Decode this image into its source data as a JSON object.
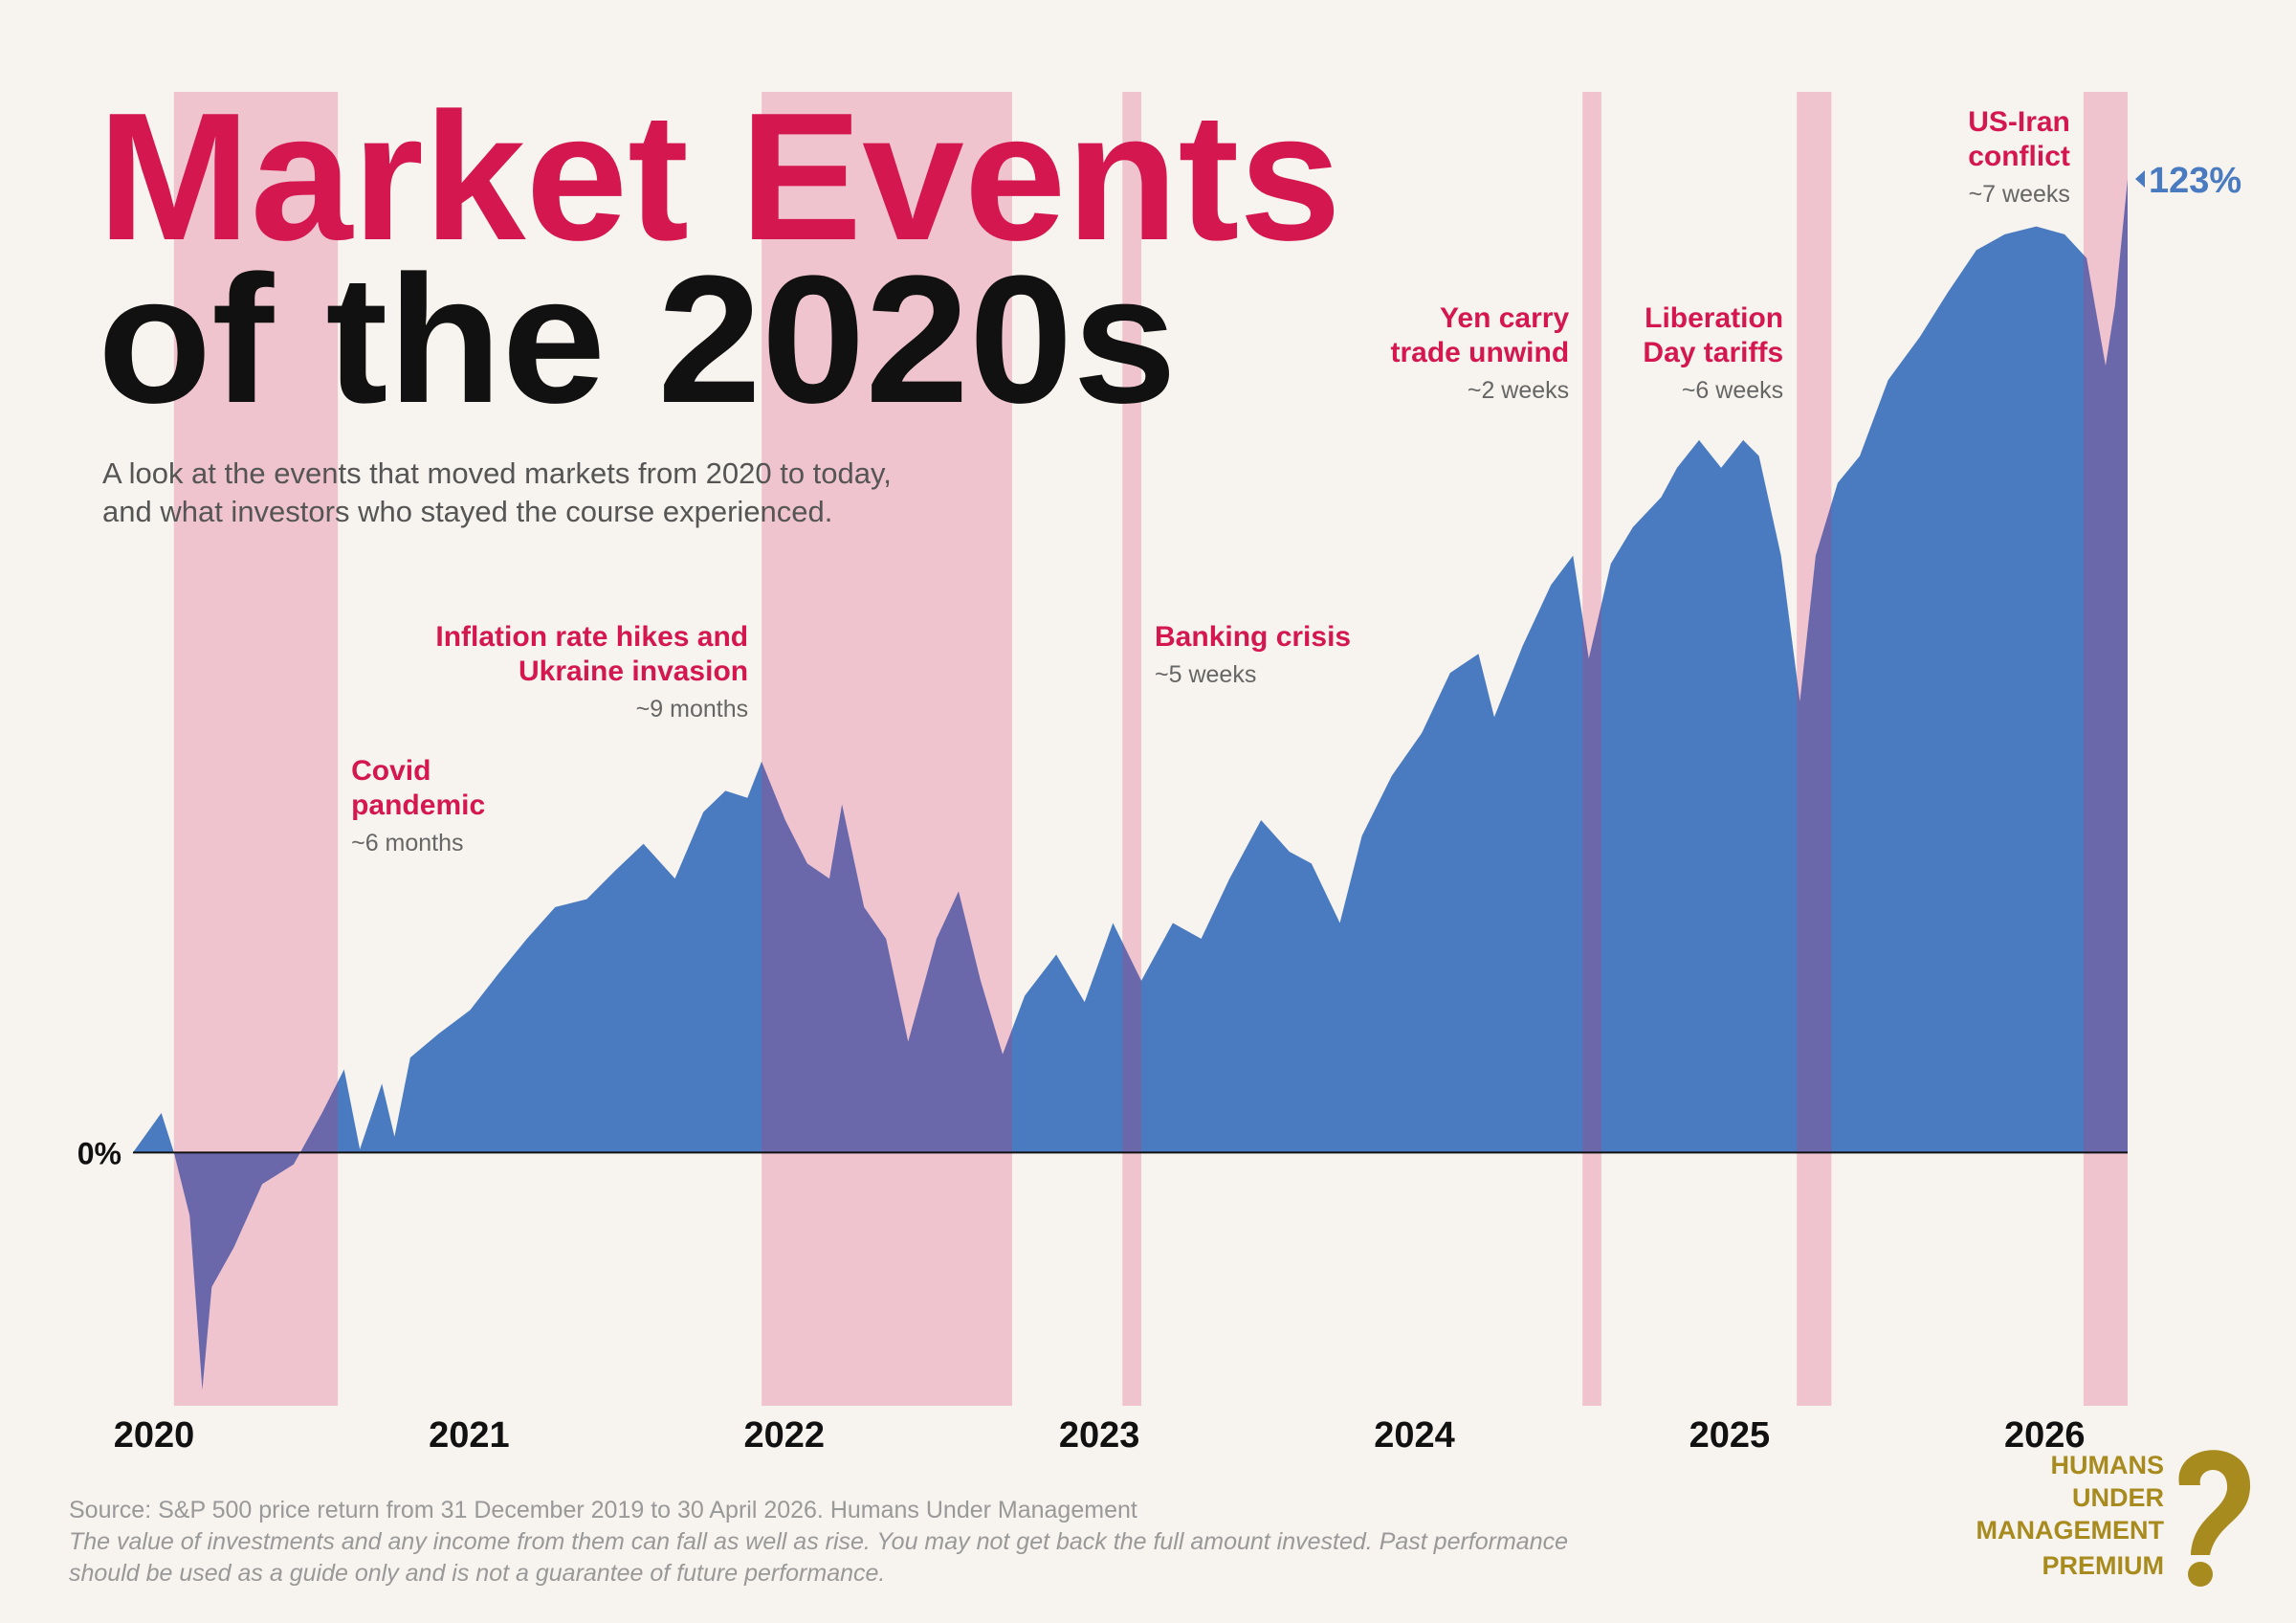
{
  "title": [
    "Market Events",
    "of the 2020s"
  ],
  "subtitle": [
    "A look at the events that moved markets from 2020 to today,",
    "and what investors who stayed the course experienced."
  ],
  "chart_data": {
    "type": "area",
    "xlim": [
      2020,
      2026.33
    ],
    "xticks": [
      2020,
      2021,
      2022,
      2023,
      2024,
      2025,
      2026
    ],
    "ylim": [
      -32,
      134
    ],
    "yticks": [
      {
        "value": 0,
        "label": "0%"
      }
    ],
    "series": [
      {
        "name": "S&P 500",
        "color": "#4a7bc0",
        "x": [
          2020,
          2020.09,
          2020.13,
          2020.18,
          2020.22,
          2020.25,
          2020.32,
          2020.41,
          2020.51,
          2020.6,
          2020.67,
          2020.72,
          2020.79,
          2020.83,
          2020.88,
          2020.97,
          2021.07,
          2021.16,
          2021.25,
          2021.34,
          2021.44,
          2021.53,
          2021.62,
          2021.72,
          2021.81,
          2021.88,
          2021.95,
          2021.995,
          2022.07,
          2022.14,
          2022.21,
          2022.25,
          2022.32,
          2022.39,
          2022.46,
          2022.55,
          2022.62,
          2022.69,
          2022.76,
          2022.83,
          2022.93,
          2023.02,
          2023.11,
          2023.2,
          2023.3,
          2023.39,
          2023.48,
          2023.58,
          2023.67,
          2023.74,
          2023.83,
          2023.9,
          2023.995,
          2024.09,
          2024.18,
          2024.27,
          2024.32,
          2024.41,
          2024.5,
          2024.57,
          2024.62,
          2024.69,
          2024.76,
          2024.85,
          2024.9,
          2024.97,
          2025.04,
          2025.11,
          2025.16,
          2025.23,
          2025.29,
          2025.34,
          2025.41,
          2025.48,
          2025.57,
          2025.67,
          2025.76,
          2025.85,
          2025.94,
          2026.04,
          2026.13,
          2026.2,
          2026.26,
          2026.29,
          2026.33
        ],
        "values": [
          0,
          5,
          0,
          -8,
          -30,
          -17,
          -12,
          -4,
          -1.5,
          5,
          10.5,
          0.4,
          8.7,
          2,
          12,
          15,
          18,
          22.6,
          27,
          31,
          32,
          35.6,
          39,
          34.6,
          43,
          45.7,
          44.8,
          49.4,
          42,
          36.5,
          34.6,
          44,
          31,
          27,
          14,
          27,
          33,
          21.7,
          12.4,
          19.8,
          25,
          19,
          29,
          21.7,
          29,
          27,
          34.6,
          42,
          38,
          36.5,
          29,
          40,
          47.6,
          53,
          60.6,
          63,
          55,
          64,
          71.7,
          75.4,
          62.4,
          74.4,
          79,
          82.8,
          86.5,
          90,
          86.5,
          90,
          88,
          75.4,
          57,
          75.4,
          84.6,
          88,
          97.6,
          103,
          108.7,
          114,
          116,
          117,
          116,
          113,
          99.4,
          107,
          123
        ],
        "value_labels": [
          null,
          null,
          null,
          null,
          null,
          null,
          null,
          null,
          null,
          null,
          null,
          null,
          null,
          null,
          null,
          null,
          null,
          null,
          null,
          null,
          null,
          null,
          null,
          null,
          null,
          null,
          null,
          null,
          null,
          null,
          null,
          null,
          null,
          null,
          null,
          null,
          null,
          null,
          null,
          null,
          null,
          null,
          null,
          null,
          null,
          null,
          null,
          null,
          null,
          null,
          null,
          null,
          null,
          null,
          null,
          null,
          null,
          null,
          null,
          null,
          null,
          null,
          null,
          null,
          null,
          null,
          null,
          null,
          null,
          null,
          null,
          null,
          null,
          null,
          null,
          null,
          null,
          null,
          null,
          null,
          null,
          null,
          null,
          null,
          "123%"
        ]
      }
    ],
    "events": [
      {
        "name": [
          "Covid",
          "pandemic"
        ],
        "duration": "~6 months",
        "start": 2020.13,
        "end": 2020.65
      },
      {
        "name": [
          "Inflation rate hikes and",
          "Ukraine invasion"
        ],
        "duration": "~9 months",
        "start": 2021.995,
        "end": 2022.79
      },
      {
        "name": [
          "Banking crisis"
        ],
        "duration": "~5 weeks",
        "start": 2023.14,
        "end": 2023.2
      },
      {
        "name": [
          "Yen carry",
          "trade unwind"
        ],
        "duration": "~2 weeks",
        "start": 2024.6,
        "end": 2024.66
      },
      {
        "name": [
          "Liberation",
          "Day tariffs"
        ],
        "duration": "~6 weeks",
        "start": 2025.28,
        "end": 2025.39
      },
      {
        "name": [
          "US-Iran",
          "conflict"
        ],
        "duration": "~7 weeks",
        "start": 2026.19,
        "end": 2026.33
      }
    ],
    "band_color": "#d82c68"
  },
  "source": "Source: S&P 500 price return from 31 December 2019 to 30 April 2026. Humans Under Management",
  "disclaimer": [
    "The value of investments and any income from them can fall as well as rise. You may not get back the full amount invested. Past performance",
    "should be used as a guide only and is not a guarantee of future performance."
  ],
  "brand": [
    "HUMANS",
    "UNDER",
    "MANAGEMENT",
    "PREMIUM"
  ]
}
